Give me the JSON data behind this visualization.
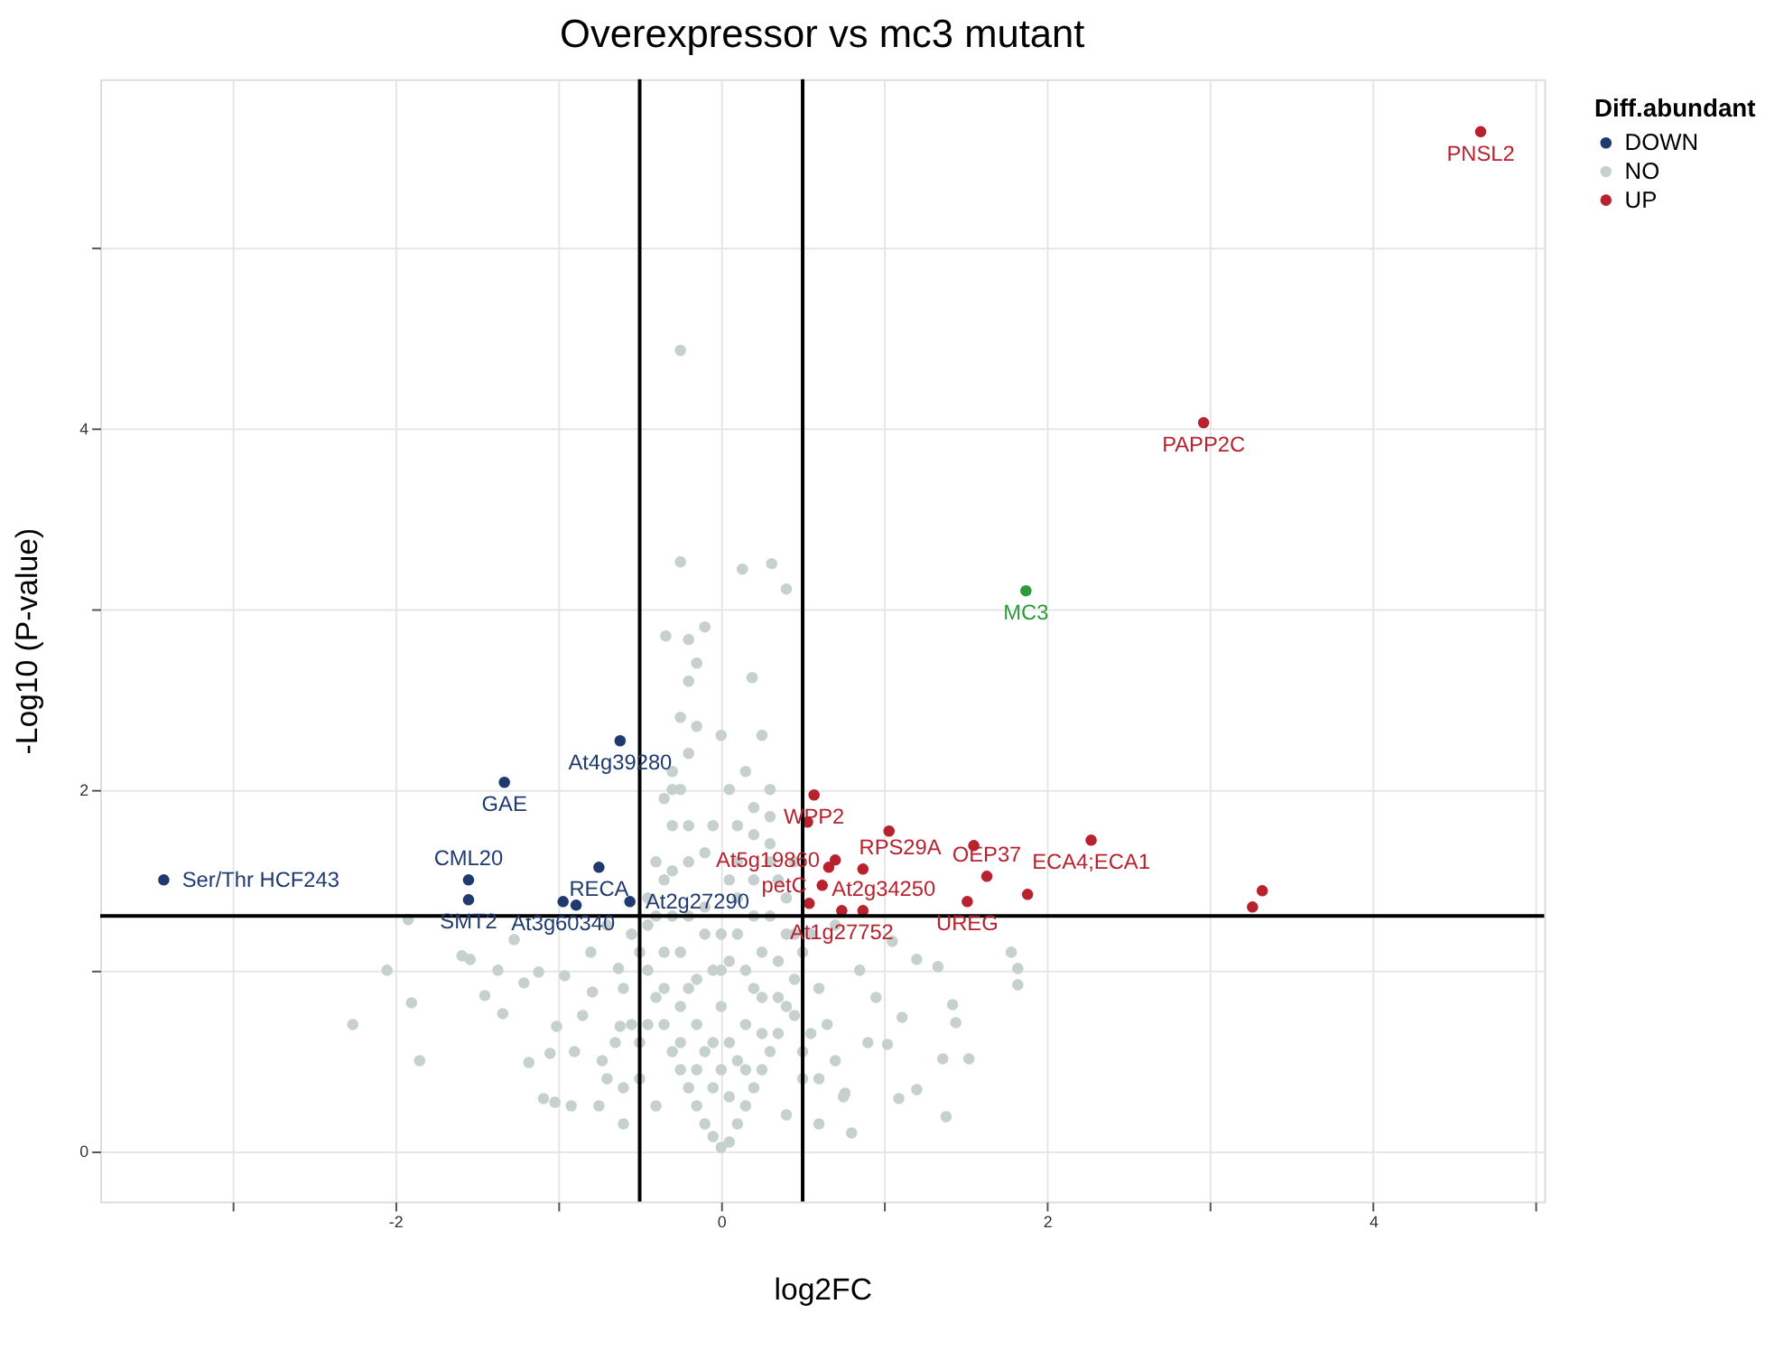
{
  "chart_data": {
    "type": "scatter",
    "title": "Overexpressor vs mc3 mutant",
    "xlabel": "log2FC",
    "ylabel": "-Log10 (P-value)",
    "legend_title": "Diff.abundant",
    "legend": "right",
    "grid": true,
    "marker": "circle",
    "xlim": [
      -3.81,
      5.05
    ],
    "ylim": [
      -0.28,
      5.93
    ],
    "xticks": [
      {
        "value": -3,
        "label": null
      },
      -2,
      {
        "value": -1,
        "label": null
      },
      0,
      {
        "value": 1,
        "label": null
      },
      2,
      {
        "value": 3,
        "label": null
      },
      4,
      {
        "value": 5,
        "label": null
      }
    ],
    "yticks": [
      0,
      {
        "value": 1,
        "label": null
      },
      2,
      {
        "value": 3,
        "label": null
      },
      4,
      {
        "value": 5,
        "label": null
      }
    ],
    "series": [
      {
        "name": "DOWN",
        "color": "#1f3a6e",
        "x": [
          -3.42,
          -1.55,
          -1.55,
          -0.97,
          -0.89,
          -0.56,
          -0.75,
          -1.33,
          -0.62
        ],
        "values": [
          1.5,
          1.5,
          1.39,
          1.38,
          1.36,
          1.38,
          1.57,
          2.04,
          2.27
        ]
      },
      {
        "name": "NO",
        "color": "#c5d0cf",
        "x": [
          -0.25,
          -0.25,
          0.13,
          0.31,
          0.4,
          -0.34,
          -0.2,
          0.19,
          -2.26,
          -2.05,
          -1.9,
          -1.85,
          -1.92,
          -1.59,
          -1.54,
          -1.37,
          -1.45,
          -1.34,
          -1.27,
          -1.12,
          -1.21,
          -1.09,
          -1.02,
          -1.18,
          -0.96,
          -1.05,
          -1.01,
          -0.92,
          -0.79,
          -0.73,
          -0.63,
          -0.62,
          1.78,
          1.82,
          1.82,
          1.52,
          1.38,
          1.2,
          1.09,
          1.36,
          1.42,
          1.33,
          1.2,
          1.44,
          1.11,
          1.02,
          0.76,
          1.05,
          0,
          0.05,
          -0.05,
          0.1,
          -0.1,
          0.15,
          -0.15,
          0.2,
          -0.2,
          0.25,
          -0.25,
          0.3,
          -0.3,
          0.35,
          -0.35,
          0.4,
          -0.4,
          0.45,
          -0.45,
          0.5,
          -0.5,
          0.55,
          -0.55,
          0.05,
          -0.05,
          0.1,
          -0.1,
          0,
          0.15,
          -0.15,
          0.2,
          -0.2,
          0.25,
          -0.25,
          0.3,
          -0.3,
          0.35,
          -0.35,
          0.1,
          -0.1,
          0.2,
          -0.2,
          0.3,
          -0.3,
          -0.25,
          -0.2,
          -0.25,
          -0.3,
          0.2,
          0.3,
          0.15,
          -0.35,
          -0.4,
          0.4,
          0.45,
          -0.45,
          0.6,
          -0.6,
          0.65,
          -0.65,
          0.7,
          -0.7,
          0.75,
          -0.75,
          0.8,
          -0.6,
          0.6,
          0.5,
          -0.5,
          0.9,
          -0.85,
          0.95,
          -0.9,
          0.85,
          -0.8,
          0.7,
          -0.7,
          0.4,
          -0.4,
          0,
          0,
          0.05,
          -0.05,
          -0.2,
          -0.15,
          0,
          0.25,
          -0.1,
          0.1,
          -0.05,
          0.05,
          -0.15,
          0.15,
          -0.25,
          0.25,
          -0.35,
          0.35,
          -0.45,
          0.45,
          -0.05,
          0.05,
          -0.15,
          0.15,
          -0.25,
          0.25,
          -0.35,
          0.35,
          -0.45,
          0.45,
          -0.55,
          0.55,
          -0.1,
          0.1,
          -0.2,
          0.2,
          -0.3,
          0.3,
          -0.4,
          0.4,
          -0.5,
          0.5,
          -0.6,
          0.6,
          0,
          -0.1,
          0.1,
          -0.3,
          0.3,
          -0.2,
          0.2,
          -0.15,
          0.05
        ],
        "values": [
          4.43,
          3.26,
          3.22,
          3.25,
          3.11,
          2.85,
          2.83,
          2.62,
          0.7,
          1.0,
          0.82,
          0.5,
          1.28,
          1.08,
          1.06,
          1.0,
          0.86,
          0.76,
          1.17,
          0.99,
          0.93,
          0.29,
          0.27,
          0.49,
          0.97,
          0.54,
          0.69,
          0.25,
          0.88,
          0.5,
          1.01,
          0.69,
          1.1,
          1.01,
          0.92,
          0.51,
          0.19,
          0.34,
          0.29,
          0.51,
          0.81,
          1.02,
          1.06,
          0.71,
          0.74,
          0.59,
          0.32,
          1.16,
          0.02,
          0.05,
          0.08,
          0.15,
          0.15,
          0.25,
          0.25,
          0.35,
          0.35,
          0.45,
          0.45,
          0.55,
          0.55,
          0.65,
          0.7,
          0.8,
          0.85,
          0.95,
          1.0,
          1.1,
          1.1,
          1.2,
          1.2,
          0.3,
          0.35,
          0.5,
          0.55,
          0.45,
          0.7,
          0.7,
          0.9,
          0.9,
          1.1,
          1.1,
          1.3,
          1.3,
          1.5,
          1.5,
          1.2,
          1.2,
          1.5,
          1.6,
          1.7,
          1.8,
          2.0,
          2.2,
          2.4,
          2.1,
          1.9,
          2.0,
          2.1,
          1.95,
          1.6,
          1.4,
          1.6,
          1.4,
          0.9,
          0.9,
          0.7,
          0.6,
          0.5,
          0.4,
          0.3,
          0.25,
          0.1,
          0.15,
          0.15,
          0.4,
          0.4,
          0.6,
          0.75,
          0.85,
          0.55,
          1.0,
          1.1,
          1.25,
          1.25,
          0.2,
          0.25,
          0.8,
          1.0,
          1.5,
          1.8,
          2.6,
          2.7,
          2.3,
          2.3,
          2.9,
          1.8,
          0.6,
          0.6,
          0.45,
          0.45,
          0.6,
          0.65,
          0.9,
          0.85,
          0.7,
          0.75,
          1.0,
          1.05,
          0.95,
          1.0,
          0.8,
          0.85,
          1.1,
          1.05,
          1.25,
          1.2,
          0.7,
          0.65,
          1.35,
          1.4,
          1.3,
          1.3,
          1.55,
          1.6,
          1.3,
          1.2,
          0.6,
          0.55,
          0.35,
          0.4,
          1.2,
          1.65,
          1.6,
          2.0,
          1.85,
          1.8,
          1.75,
          2.35,
          2.0
        ]
      },
      {
        "name": "UP",
        "color": "#b8212e",
        "x": [
          0.57,
          0.53,
          0.66,
          0.7,
          1.03,
          0.87,
          0.62,
          0.54,
          0.74,
          0.87,
          1.55,
          1.63,
          1.88,
          1.51,
          2.27,
          3.32,
          3.26,
          2.96,
          4.66
        ],
        "values": [
          1.97,
          1.82,
          1.57,
          1.61,
          1.77,
          1.56,
          1.47,
          1.37,
          1.33,
          1.33,
          1.69,
          1.52,
          1.42,
          1.38,
          1.72,
          1.44,
          1.35,
          4.03,
          5.64
        ]
      },
      {
        "color": "#2e9a3a",
        "x": [
          1.87
        ],
        "values": [
          3.1
        ]
      }
    ],
    "ref_lines": [
      {
        "axis": "x",
        "value": -0.5,
        "color": "#000000"
      },
      {
        "axis": "x",
        "value": 0.5,
        "color": "#000000"
      },
      {
        "axis": "y",
        "value": 1.3,
        "color": "#000000"
      }
    ],
    "annotations": [
      {
        "text": "Ser/Thr HCF243",
        "x": -3.42,
        "y": 1.5
      },
      {
        "text": "CML20",
        "x": -1.55,
        "y": 1.5
      },
      {
        "text": "SMT2",
        "x": -1.55,
        "y": 1.39
      },
      {
        "text": "At3g60340",
        "x": -0.97,
        "y": 1.38
      },
      {
        "text": "At2g27290",
        "x": -0.56,
        "y": 1.38
      },
      {
        "text": "RECA",
        "x": -0.75,
        "y": 1.57
      },
      {
        "text": "GAE",
        "x": -1.33,
        "y": 2.04
      },
      {
        "text": "At4g39280",
        "x": -0.62,
        "y": 2.27
      },
      {
        "text": "WPP2",
        "x": 0.57,
        "y": 1.97
      },
      {
        "text": "At5g19860",
        "x": 0.7,
        "y": 1.61
      },
      {
        "text": "At2g34250",
        "x": 0.66,
        "y": 1.57
      },
      {
        "text": "RPS29A",
        "x": 0.87,
        "y": 1.56
      },
      {
        "text": "petC",
        "x": 0.62,
        "y": 1.47
      },
      {
        "text": "At1g27752",
        "x": 0.74,
        "y": 1.33
      },
      {
        "text": "OEP37",
        "x": 1.63,
        "y": 1.52
      },
      {
        "text": "UREG",
        "x": 1.51,
        "y": 1.38
      },
      {
        "text": "ECA4;ECA1",
        "x": 2.27,
        "y": 1.72
      },
      {
        "text": "PAPP2C",
        "x": 2.96,
        "y": 4.03
      },
      {
        "text": "PNSL2",
        "x": 4.66,
        "y": 5.64
      },
      {
        "text": "MC3",
        "x": 1.87,
        "y": 3.1
      }
    ]
  }
}
